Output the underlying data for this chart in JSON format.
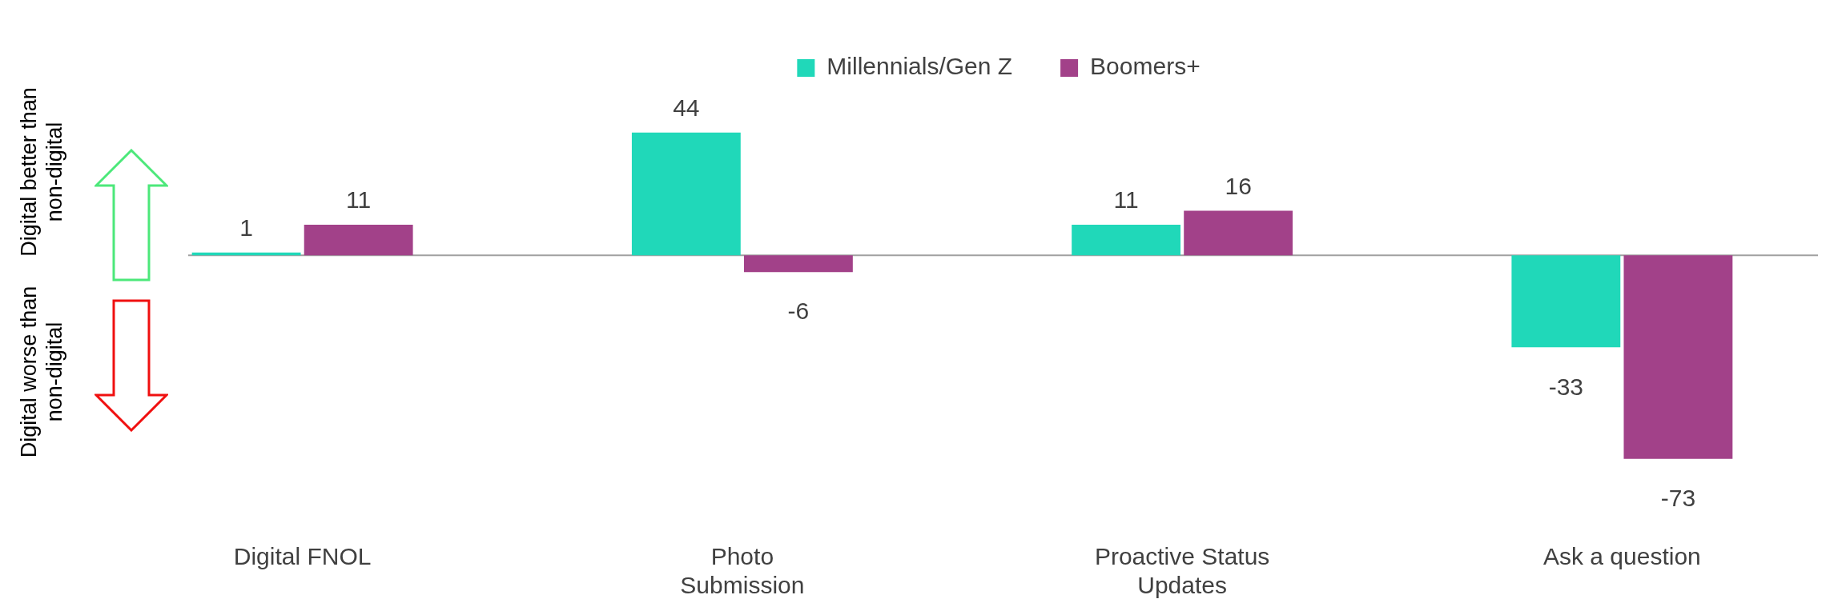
{
  "chart_data": {
    "type": "bar",
    "categories": [
      "Digital FNOL",
      "Photo Submission",
      "Proactive Status Updates",
      "Ask a question"
    ],
    "series": [
      {
        "name": "Millennials/Gen Z",
        "color": "#20d8b9",
        "values": [
          1,
          44,
          11,
          -33
        ]
      },
      {
        "name": "Boomers+",
        "color": "#a24189",
        "values": [
          11,
          -6,
          16,
          -73
        ]
      }
    ],
    "tick_labels": "x",
    "data_labels": true,
    "legend": "top",
    "grid": false,
    "annotations": [
      "Digital better than non-digital",
      "Digital worse than non-digital"
    ]
  }
}
